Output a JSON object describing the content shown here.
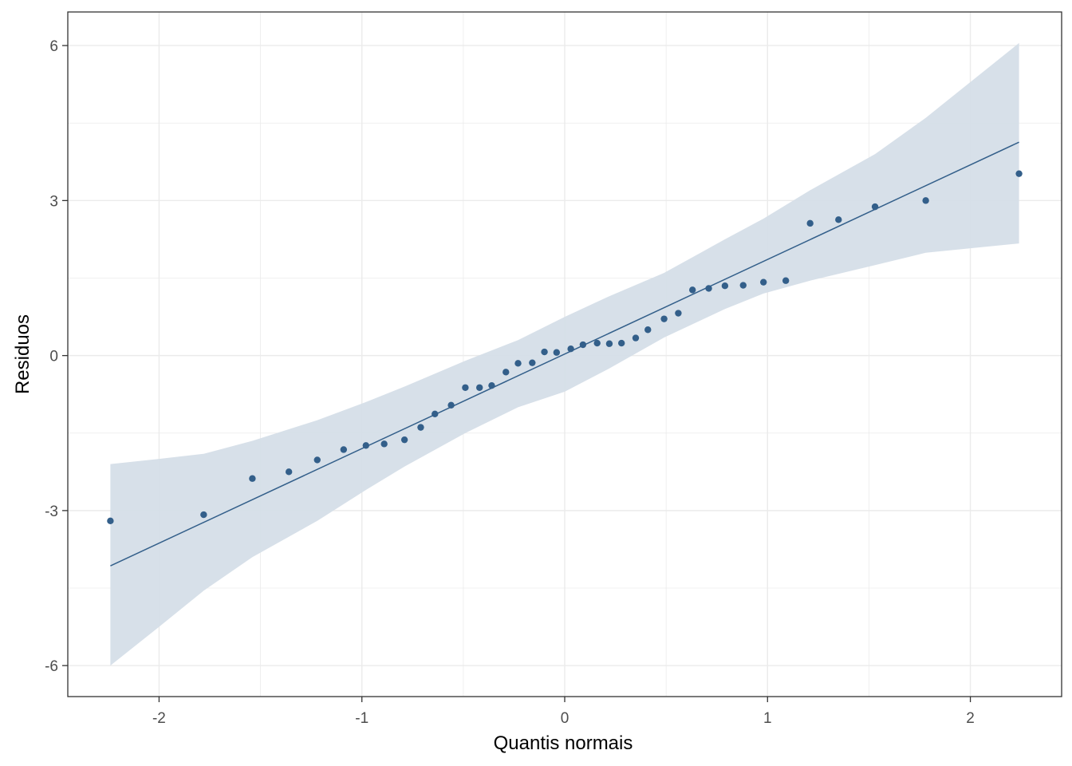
{
  "chart_data": {
    "type": "scatter",
    "title": "",
    "xlabel": "Quantis normais",
    "ylabel": "Residuos",
    "xlim": [
      -2.45,
      2.45
    ],
    "ylim": [
      -6.6,
      6.65
    ],
    "x_ticks": [
      -2,
      -1,
      0,
      1,
      2
    ],
    "y_ticks": [
      -6,
      -3,
      0,
      3,
      6
    ],
    "x_tick_labels": [
      "-2",
      "-1",
      "0",
      "1",
      "2"
    ],
    "y_tick_labels": [
      "-6",
      "-3",
      "0",
      "3",
      "6"
    ],
    "grid": true,
    "legend": "none",
    "colors": {
      "points": "#335f8a",
      "line": "#335f8a",
      "band": "#d5dee8",
      "grid": "#ebebeb",
      "panel_border": "#333333"
    },
    "points": {
      "x": [
        -2.24,
        -1.78,
        -1.54,
        -1.36,
        -1.22,
        -1.09,
        -0.98,
        -0.89,
        -0.79,
        -0.71,
        -0.64,
        -0.56,
        -0.49,
        -0.42,
        -0.36,
        -0.29,
        -0.23,
        -0.16,
        -0.1,
        -0.04,
        0.03,
        0.09,
        0.16,
        0.22,
        0.28,
        0.35,
        0.41,
        0.49,
        0.56,
        0.63,
        0.71,
        0.79,
        0.88,
        0.98,
        1.09,
        1.21,
        1.35,
        1.53,
        1.78,
        2.24
      ],
      "y": [
        -3.2,
        -3.08,
        -2.38,
        -2.25,
        -2.02,
        -1.82,
        -1.74,
        -1.71,
        -1.63,
        -1.39,
        -1.13,
        -0.96,
        -0.62,
        -0.62,
        -0.58,
        -0.32,
        -0.15,
        -0.14,
        0.07,
        0.06,
        0.13,
        0.21,
        0.24,
        0.23,
        0.24,
        0.34,
        0.5,
        0.71,
        0.82,
        1.27,
        1.3,
        1.35,
        1.36,
        1.42,
        1.45,
        2.56,
        2.63,
        2.88,
        3.0,
        3.52
      ]
    },
    "reference_line": {
      "x": [
        -2.24,
        2.24
      ],
      "y": [
        -4.07,
        4.13
      ]
    },
    "confidence_band": {
      "x": [
        -2.24,
        -2.0,
        -1.78,
        -1.54,
        -1.22,
        -0.98,
        -0.79,
        -0.49,
        -0.23,
        0.0,
        0.22,
        0.49,
        0.79,
        0.98,
        1.21,
        1.53,
        1.78,
        2.24
      ],
      "lower": [
        -6.0,
        -5.25,
        -4.55,
        -3.9,
        -3.2,
        -2.6,
        -2.15,
        -1.5,
        -1.0,
        -0.7,
        -0.25,
        0.35,
        0.9,
        1.2,
        1.45,
        1.75,
        1.99,
        2.17
      ],
      "upper": [
        -2.1,
        -2.0,
        -1.9,
        -1.65,
        -1.25,
        -0.9,
        -0.6,
        -0.1,
        0.3,
        0.75,
        1.15,
        1.6,
        2.25,
        2.65,
        3.2,
        3.9,
        4.6,
        6.05
      ]
    }
  }
}
